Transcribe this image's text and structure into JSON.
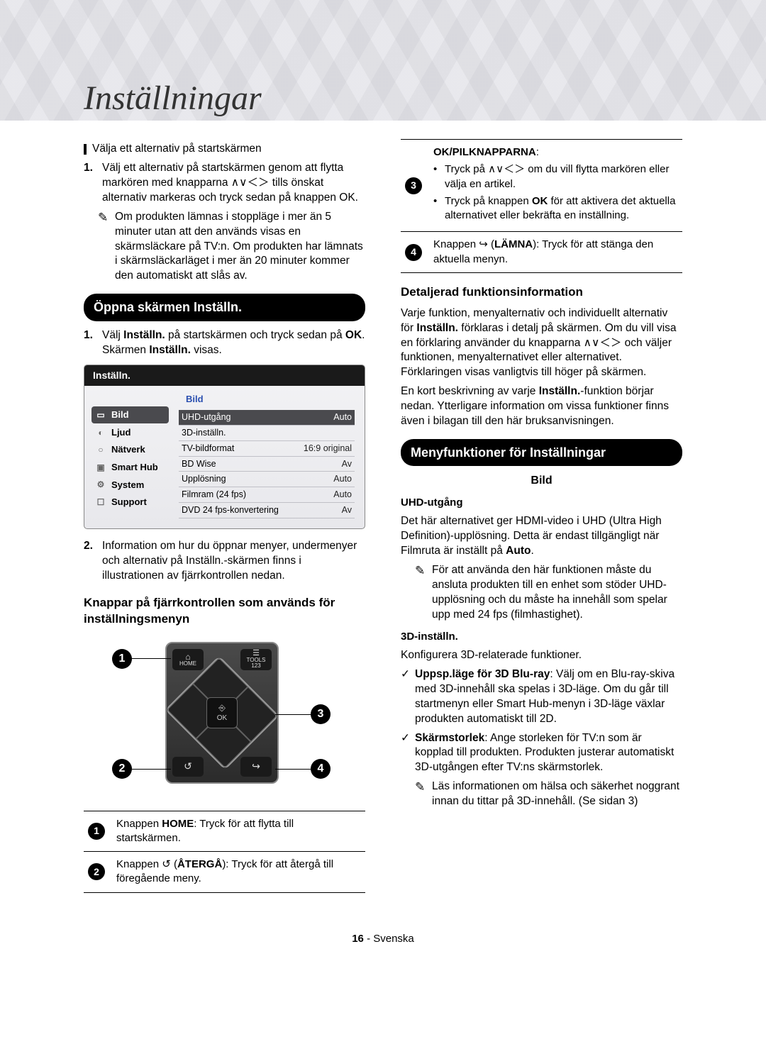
{
  "page": {
    "title": "Inställningar",
    "footer_num": "16",
    "footer_lang": "Svenska"
  },
  "left": {
    "block1_heading": "Välja ett alternativ på startskärmen",
    "step1": "Välj ett alternativ på startskärmen genom att flytta markören med knapparna ∧∨＜＞ tills önskat alternativ markeras och tryck sedan på knappen OK.",
    "step1_num": "1.",
    "note1": "Om produkten lämnas i stoppläge i mer än 5 minuter utan att den används visas en skärmsläckare på TV:n. Om produkten har lämnats i skärmsläckarläget i mer än 20 minuter kommer den automatiskt att slås av.",
    "sect_open": "Öppna skärmen Inställn.",
    "open_step1_a": "Välj ",
    "open_step1_b": "Inställn.",
    "open_step1_c": " på startskärmen och tryck sedan på ",
    "open_step1_d": "OK",
    "open_step1_e": ". Skärmen ",
    "open_step1_f": "Inställn.",
    "open_step1_g": " visas.",
    "open_step1_num": "1.",
    "settings": {
      "title": "Inställn.",
      "main_title": "Bild",
      "sidebar": [
        {
          "icon": "▭",
          "label": "Bild",
          "sel": true
        },
        {
          "icon": "◐",
          "label": "Ljud",
          "sel": false
        },
        {
          "icon": "○",
          "label": "Nätverk",
          "sel": false
        },
        {
          "icon": "▣",
          "label": "Smart Hub",
          "sel": false
        },
        {
          "icon": "⚙",
          "label": "System",
          "sel": false
        },
        {
          "icon": "☐",
          "label": "Support",
          "sel": false
        }
      ],
      "rows": [
        {
          "k": "UHD-utgång",
          "v": "Auto",
          "sel": true
        },
        {
          "k": "3D-inställn.",
          "v": "",
          "sel": false
        },
        {
          "k": "TV-bildformat",
          "v": "16:9 original",
          "sel": false
        },
        {
          "k": "BD Wise",
          "v": "Av",
          "sel": false
        },
        {
          "k": "Upplösning",
          "v": "Auto",
          "sel": false
        },
        {
          "k": "Filmram (24 fps)",
          "v": "Auto",
          "sel": false
        },
        {
          "k": "DVD 24 fps-konvertering",
          "v": "Av",
          "sel": false
        }
      ]
    },
    "open_step2": "Information om hur du öppnar menyer, undermenyer och alternativ på Inställn.-skärmen finns i illustrationen av fjärrkontrollen nedan.",
    "open_step2_num": "2.",
    "remote_heading": "Knappar på fjärrkontrollen som används för inställningsmenyn",
    "remote": {
      "top_left_1": "⌂",
      "top_left_2": "HOME",
      "top_right_1": "☰",
      "top_right_2": "TOOLS",
      "top_right_3": "123",
      "ok_top": "⎆",
      "ok_bot": "OK",
      "bot_left": "↺",
      "bot_right": "↪"
    },
    "ct": [
      {
        "n": "1",
        "pre": "Knappen ",
        "b": "HOME",
        "post": ": Tryck för att flytta till startskärmen."
      },
      {
        "n": "2",
        "pre": "Knappen ↺ (",
        "b": "ÅTERGÅ",
        "post": "): Tryck för att återgå till föregående meny."
      }
    ]
  },
  "right": {
    "ct": [
      {
        "n": "3",
        "head_a": "OK",
        "head_b": "/PILKNAPPARNA",
        "bul1": "Tryck på ∧∨＜＞ om du vill flytta markören eller välja en artikel.",
        "bul2_a": "Tryck på knappen ",
        "bul2_b": "OK",
        "bul2_c": " för att aktivera det aktuella alternativet eller bekräfta en inställning."
      },
      {
        "n": "4",
        "pre": "Knappen ↪ (",
        "b": "LÄMNA",
        "post": "): Tryck för att stänga den aktuella menyn."
      }
    ],
    "detail_head": "Detaljerad funktionsinformation",
    "detail_p1_a": "Varje funktion, menyalternativ och individuellt alternativ för ",
    "detail_p1_b": "Inställn.",
    "detail_p1_c": " förklaras i detalj på skärmen. Om du vill visa en förklaring använder du knapparna ∧∨＜＞ och väljer funktionen, menyalternativet eller alternativet. Förklaringen visas vanligtvis till höger på skärmen.",
    "detail_p2_a": "En kort beskrivning av varje ",
    "detail_p2_b": "Inställn.",
    "detail_p2_c": "-funktion börjar nedan. Ytterligare information om vissa funktioner finns även i bilagan till den här bruksanvisningen.",
    "sect_menu": "Menyfunktioner för Inställningar",
    "bild_label": "Bild",
    "uhd_head": "UHD-utgång",
    "uhd_p_a": "Det här alternativet ger HDMI-video i UHD (Ultra High Definition)-upplösning. Detta är endast tillgängligt när Filmruta är inställt på ",
    "uhd_p_b": "Auto",
    "uhd_p_c": ".",
    "uhd_note": "För att använda den här funktionen måste du ansluta produkten till en enhet som stöder UHD-upplösning och du måste ha innehåll som spelar upp med 24 fps (filmhastighet).",
    "tdhead": "3D-inställn.",
    "tdp": "Konfigurera 3D-relaterade funktioner.",
    "chk1_b": "Uppsp.läge för 3D Blu-ray",
    "chk1_t": ": Välj om en Blu-ray-skiva med 3D-innehåll ska spelas i 3D-läge. Om du går till startmenyn eller Smart Hub-menyn i 3D-läge växlar produkten automatiskt till 2D.",
    "chk2_b": "Skärmstorlek",
    "chk2_t": ": Ange storleken för TV:n som är kopplad till produkten. Produkten justerar automatiskt 3D-utgången efter TV:ns skärmstorlek.",
    "tdnote": "Läs informationen om hälsa och säkerhet noggrant innan du tittar på 3D-innehåll. (Se sidan 3)"
  }
}
